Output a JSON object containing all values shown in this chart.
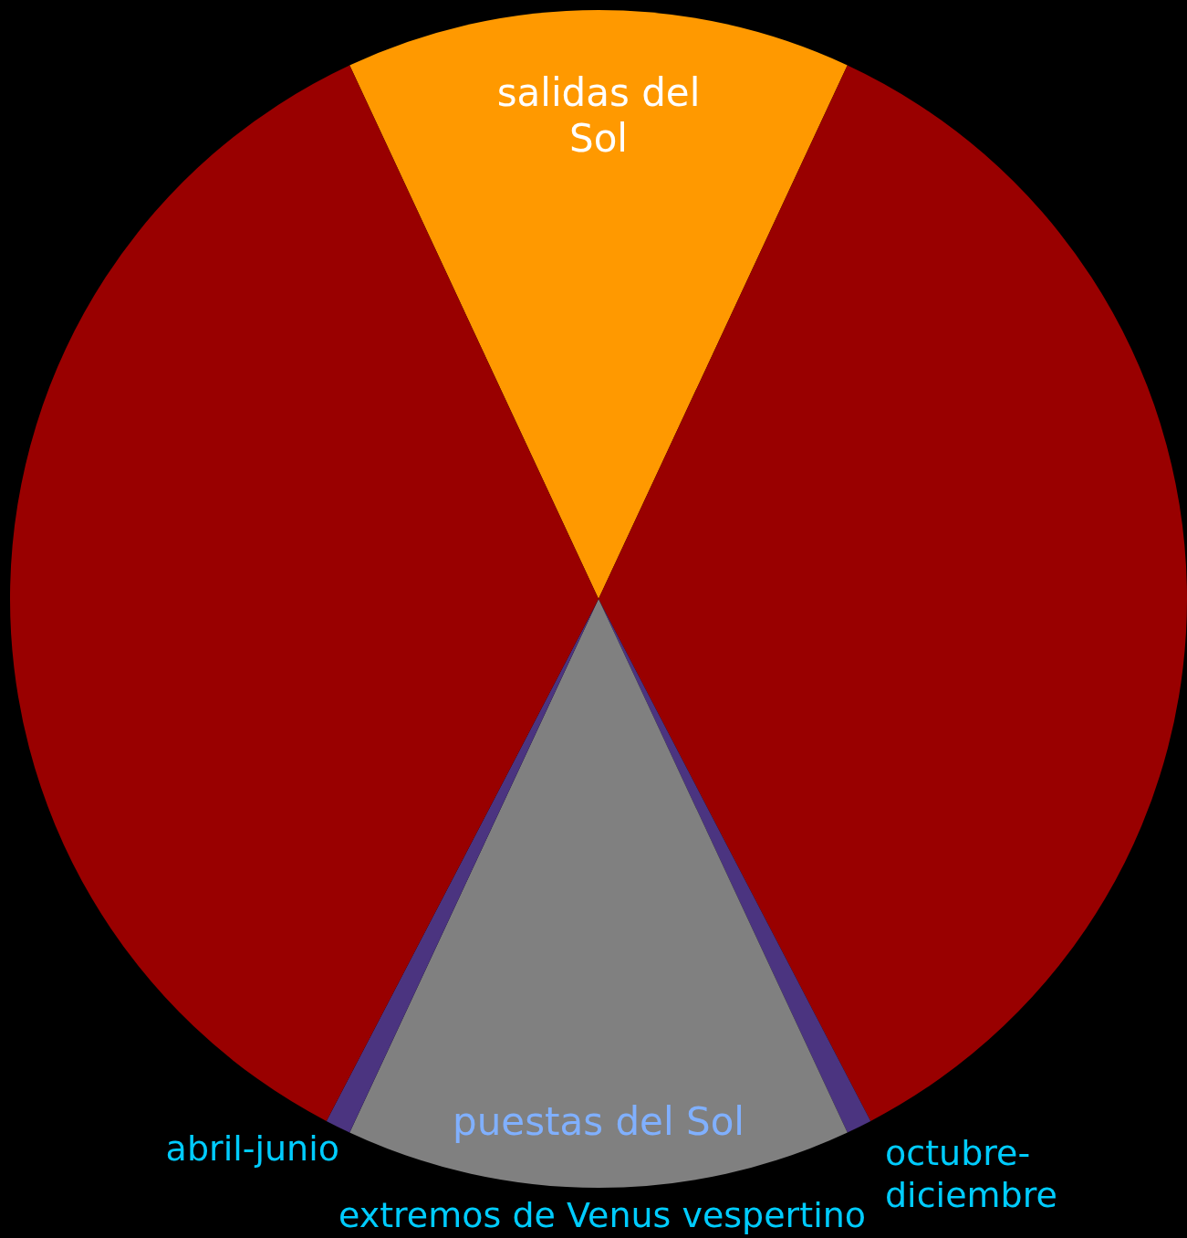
{
  "chart_data": {
    "type": "pie",
    "categories": [
      "salidas del Sol",
      null,
      "octubre-diciembre",
      "puestas del Sol",
      "abril-junio",
      null
    ],
    "values": [
      13.9,
      35.4,
      0.7,
      13.9,
      0.7,
      35.4
    ],
    "colors": [
      "#ff9900",
      "#990000",
      "#4b3480",
      "#808080",
      "#4b3480",
      "#990000"
    ],
    "annotations": [
      "extremos de Venus vespertino"
    ]
  }
}
